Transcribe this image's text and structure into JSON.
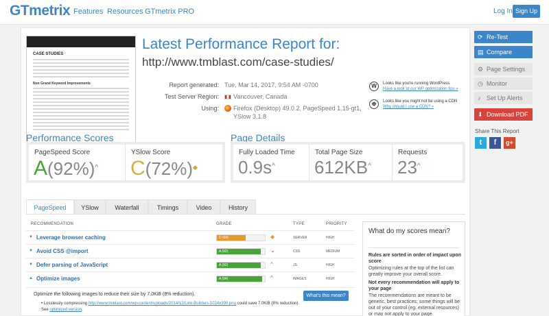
{
  "header": {
    "logo": "GTmetrix",
    "nav": [
      "Features",
      "Resources",
      "GTmetrix PRO"
    ],
    "login": "Log In",
    "signup": "Sign Up"
  },
  "thumbnail": {
    "title": "CASE STUDIES",
    "subheading": "Non Grand Keyword Improvements"
  },
  "report": {
    "title": "Latest Performance Report for:",
    "url": "http://www.tmblast.com/case-studies/",
    "generated_label": "Report generated:",
    "generated_value": "Tue, Mar 14, 2017, 9:54 AM -0700",
    "region_label": "Test Server Region:",
    "region_value": "Vancouver, Canada",
    "using_label": "Using:",
    "using_value_1": "Firefox (Desktop) 49.0.2, PageSpeed 1.15-gt1,",
    "using_value_2": "YSlow 3.1.8"
  },
  "notices": [
    {
      "icon": "wordpress-icon",
      "text": "Looks like you're running WordPress",
      "link": "Have a look at our WP optimization tips »"
    },
    {
      "icon": "cdn-icon",
      "text": "Looks like you might not be using a CDN",
      "link": "Why should I use a CDN? »"
    }
  ],
  "performance_scores": {
    "title": "Performance Scores",
    "pagespeed_label": "PageSpeed Score",
    "pagespeed_grade": "A",
    "pagespeed_pct": "(92%)",
    "yslow_label": "YSlow Score",
    "yslow_grade": "C",
    "yslow_pct": "(72%)"
  },
  "page_details": {
    "title": "Page Details",
    "loaded_label": "Fully Loaded Time",
    "loaded_value": "0.9s",
    "size_label": "Total Page Size",
    "size_value": "612KB",
    "requests_label": "Requests",
    "requests_value": "23"
  },
  "tabs": [
    "PageSpeed",
    "YSlow",
    "Waterfall",
    "Timings",
    "Video",
    "History"
  ],
  "table": {
    "col_recommendation": "RECOMMENDATION",
    "col_grade": "GRADE",
    "col_type": "TYPE",
    "col_priority": "PRIORITY",
    "rows": [
      {
        "name": "Leverage browser caching",
        "grade": "D (60)",
        "score": 0.6,
        "type": "SERVER",
        "priority": "HIGH"
      },
      {
        "name": "Avoid CSS @import",
        "grade": "A (92)",
        "score": 0.92,
        "type": "CSS",
        "priority": "MEDIUM"
      },
      {
        "name": "Defer parsing of JavaScript",
        "grade": "A (92)",
        "score": 0.92,
        "type": "JS",
        "priority": "HIGH"
      },
      {
        "name": "Optimize images",
        "grade": "A (94)",
        "score": 0.94,
        "type": "IMAGES",
        "priority": "HIGH"
      }
    ]
  },
  "detail": {
    "text": "Optimize the following images to reduce their size by 7.0KiB (8% reduction).",
    "bullet_prefix": "Losslessly compressing",
    "bullet_link": "http://www.tmblast.com/wp-content/uploads/2014/12/Link-Builders-1024x390.png",
    "bullet_suffix": "could save 7.0KiB (8% reduction).",
    "see_prefix": "See",
    "see_link": "optimized version",
    "button": "What's this mean?"
  },
  "side_card": {
    "title": "What do my scores mean?",
    "p1_bold": "Rules are sorted in order of impact upon score",
    "p1_text": "Optimizing rules at the top of the list can greatly improve your overall score.",
    "p2_bold": "Not every recommendation will apply to your page",
    "p2_text": "The recommendations are meant to be generic, best practices; some things will be out of your control (eg. external resources) or may not apply to your page."
  },
  "sidebar": {
    "retest": "Re-Test",
    "compare": "Compare",
    "page_settings": "Page Settings",
    "monitor": "Monitor",
    "alerts": "Set Up Alerts",
    "download": "Download PDF",
    "share_title": "Share This Report"
  },
  "colors": {
    "accent": "#3a86c8",
    "grade_a": "#4aa33a",
    "grade_d": "#e39a2b",
    "download": "#d9443a"
  }
}
